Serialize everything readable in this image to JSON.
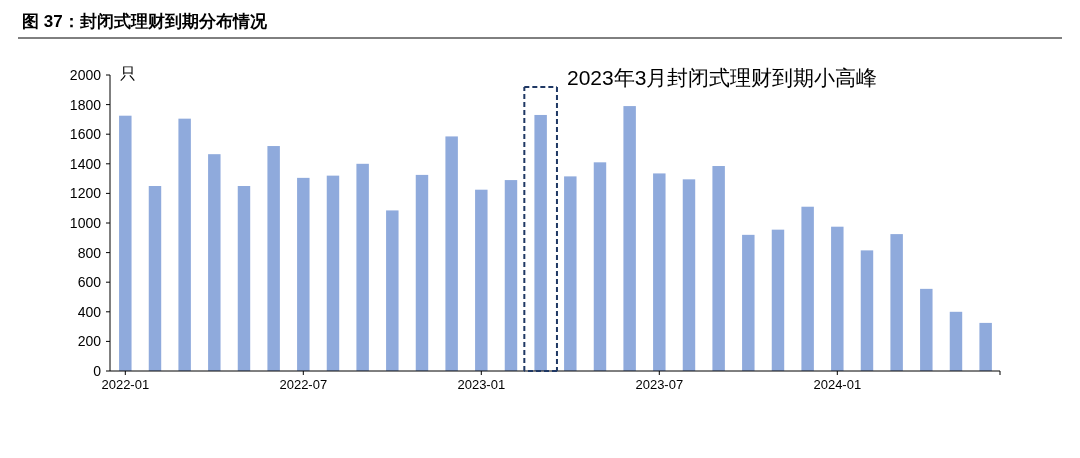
{
  "chart_data": {
    "type": "bar",
    "title": "图 37：封闭式理财到期分布情况",
    "ylabel": "只",
    "x": [
      "2022-01",
      "2022-02",
      "2022-03",
      "2022-04",
      "2022-05",
      "2022-06",
      "2022-07",
      "2022-08",
      "2022-09",
      "2022-10",
      "2022-11",
      "2022-12",
      "2023-01",
      "2023-02",
      "2023-03",
      "2023-04",
      "2023-05",
      "2023-06",
      "2023-07",
      "2023-08",
      "2023-09",
      "2023-10",
      "2023-11",
      "2023-12",
      "2024-01",
      "2024-02",
      "2024-03",
      "2024-04",
      "2024-05",
      "2024-06"
    ],
    "values": [
      1725,
      1250,
      1705,
      1465,
      1250,
      1520,
      1305,
      1320,
      1400,
      1085,
      1325,
      1585,
      1225,
      1290,
      1730,
      1315,
      1410,
      1790,
      1335,
      1295,
      1385,
      920,
      955,
      1110,
      975,
      815,
      925,
      555,
      400,
      325
    ],
    "color": "#8faadc",
    "xlim": [
      "2021-12-16",
      "2024-06-16"
    ],
    "xticks": [
      "2022-01",
      "2022-07",
      "2023-01",
      "2023-07",
      "2024-01"
    ],
    "ylim": [
      0,
      2000
    ],
    "yticks": [
      0,
      200,
      400,
      600,
      800,
      1000,
      1200,
      1400,
      1600,
      1800,
      2000
    ],
    "grid": false,
    "annotations": [
      {
        "text": "2023年3月封闭式理财到期小高峰",
        "x": "2023-03",
        "y": 1730
      }
    ]
  }
}
